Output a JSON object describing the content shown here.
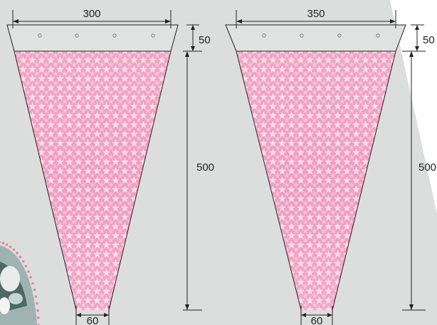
{
  "diagram": {
    "sleeves": [
      {
        "top_width": "300",
        "header_height": "50",
        "body_height": "500",
        "bottom_width": "60"
      },
      {
        "top_width": "350",
        "header_height": "50",
        "body_height": "500",
        "bottom_width": "60"
      }
    ]
  },
  "colors": {
    "backdrop": "#dcdedd",
    "sleeve_pink": "#ef9ec0",
    "star_light": "#f9d9e6",
    "outline": "#222222",
    "photo_dots": "#ee7fa6"
  }
}
